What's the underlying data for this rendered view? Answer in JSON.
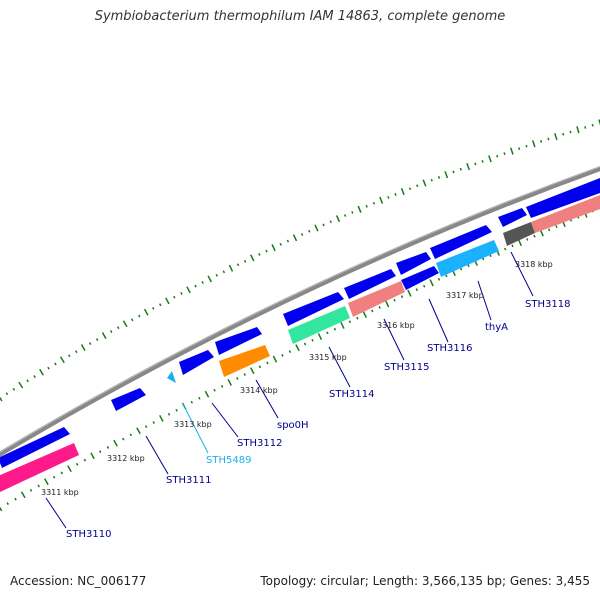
{
  "title": "Symbiobacterium thermophilum IAM 14863, complete genome",
  "footer": {
    "accession": "Accession: NC_006177",
    "summary": "Topology: circular; Length: 3,566,135 bp; Genes: 3,455"
  },
  "colors": {
    "backbone": "#888888",
    "tick": "#1a7a1a",
    "gene_blue": "#0000ee",
    "cds_pink": "#ff1a8c",
    "cds_mint": "#33e6a0",
    "cds_orange": "#ff8c00",
    "cds_salmon": "#f08080",
    "cds_sky": "#1ab2ff",
    "cds_gray": "#555555",
    "label_blue": "#00008b",
    "label_cyan": "#1ab2e6"
  },
  "kbp_labels": [
    "3311 kbp",
    "3312 kbp",
    "3313 kbp",
    "3314 kbp",
    "3315 kbp",
    "3316 kbp",
    "3317 kbp",
    "3318 kbp"
  ],
  "genes": [
    {
      "name": "STH3110",
      "color": "label_blue"
    },
    {
      "name": "STH3111",
      "color": "label_blue"
    },
    {
      "name": "STH5489",
      "color": "label_cyan"
    },
    {
      "name": "STH3112",
      "color": "label_blue"
    },
    {
      "name": "spo0H",
      "color": "label_blue"
    },
    {
      "name": "STH3114",
      "color": "label_blue"
    },
    {
      "name": "STH3115",
      "color": "label_blue"
    },
    {
      "name": "STH3116",
      "color": "label_blue"
    },
    {
      "name": "thyA",
      "color": "label_blue"
    },
    {
      "name": "STH3118",
      "color": "label_blue"
    }
  ]
}
